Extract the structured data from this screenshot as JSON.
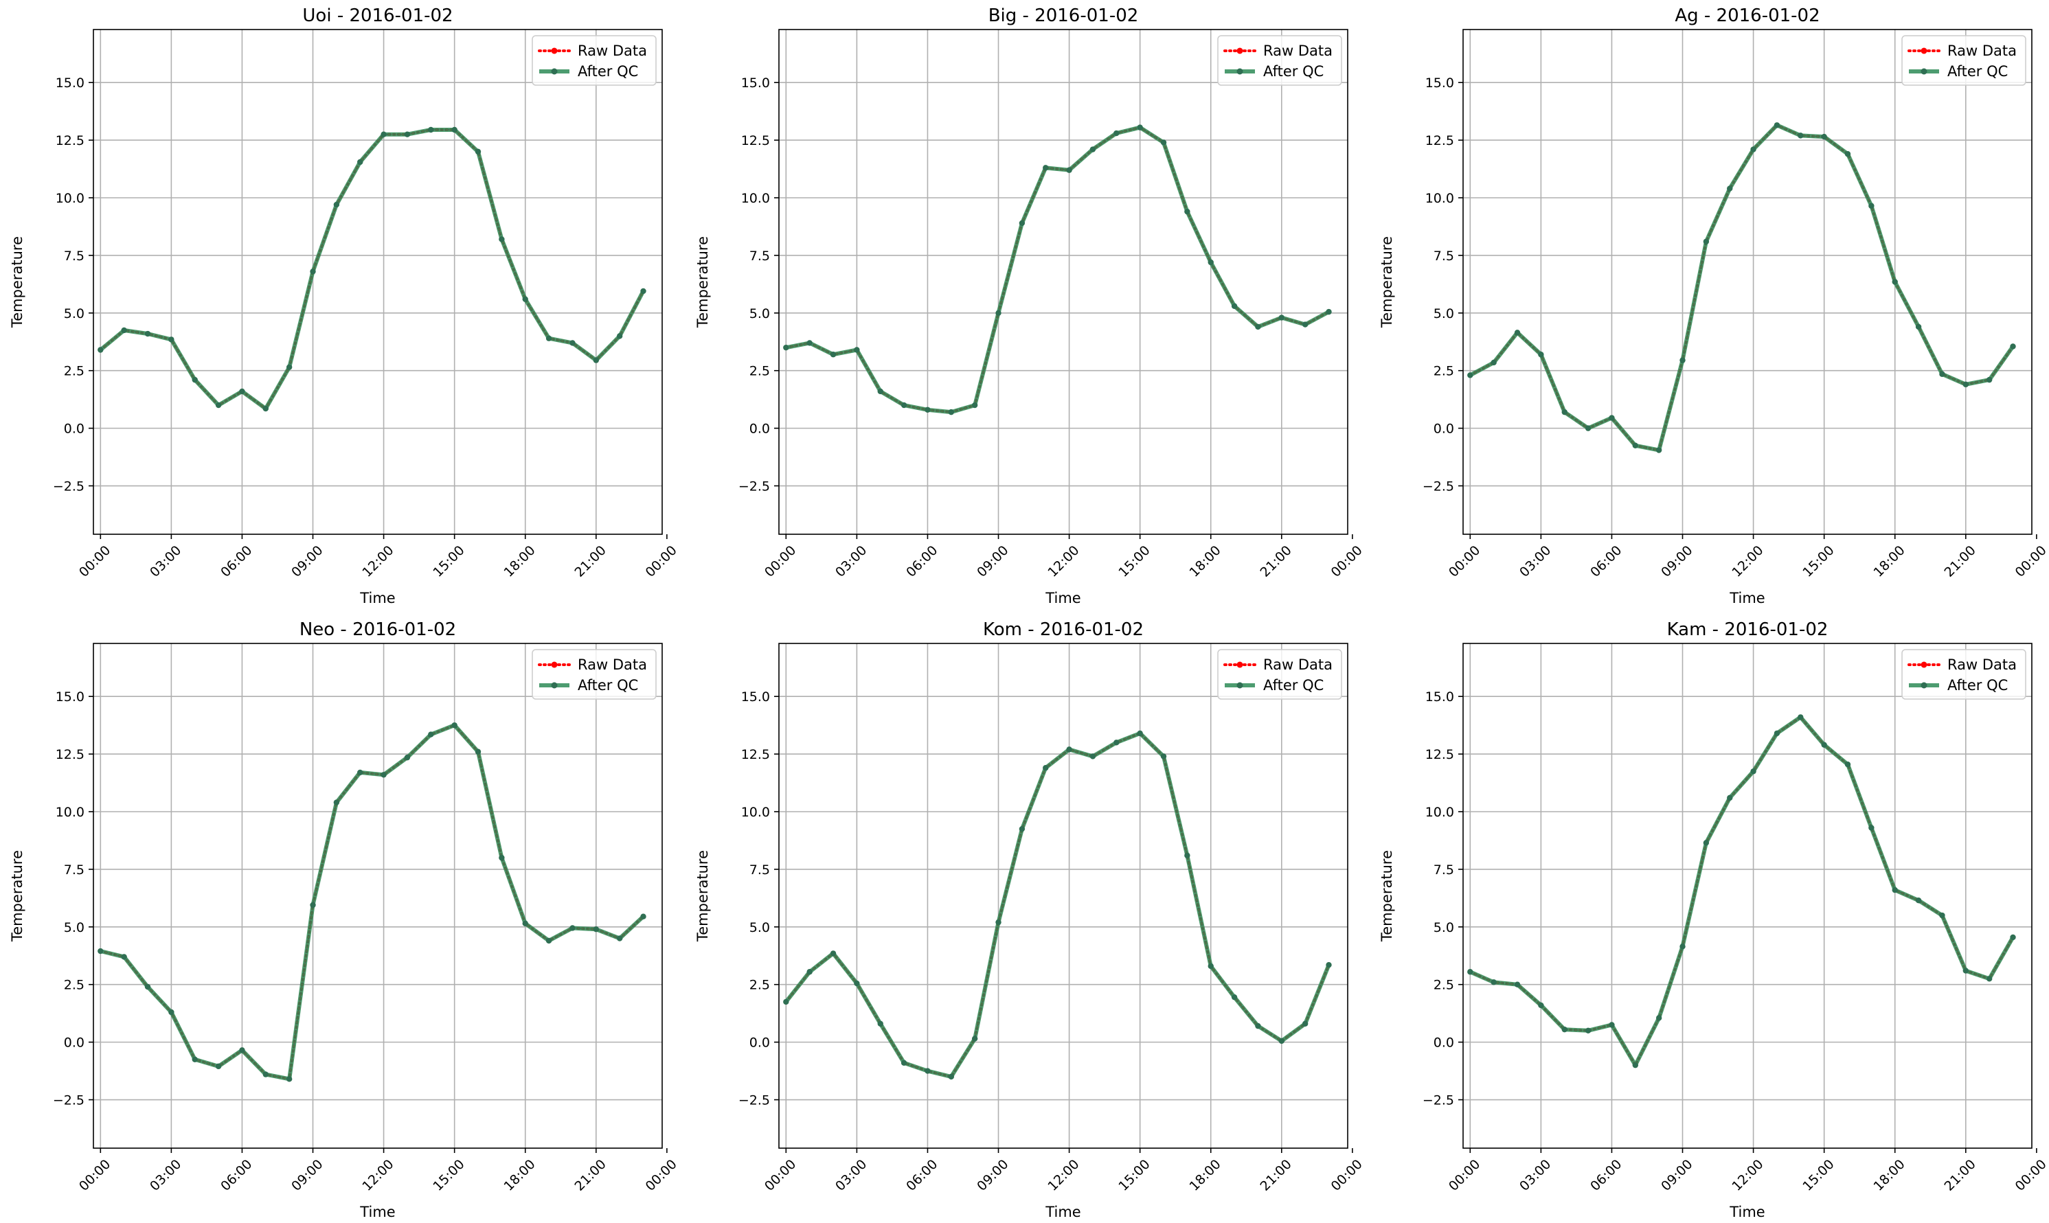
{
  "chart_data": [
    {
      "type": "line",
      "title": "Uoi - 2016-01-02",
      "xlabel": "Time",
      "ylabel": "Temperature",
      "ylim": [
        -4.6,
        17.3
      ],
      "xlim": [
        -0.3,
        23.8
      ],
      "yticks": [
        "−2.5",
        "0.0",
        "2.5",
        "5.0",
        "7.5",
        "10.0",
        "12.5",
        "15.0"
      ],
      "ytick_values": [
        -2.5,
        0,
        2.5,
        5,
        7.5,
        10,
        12.5,
        15
      ],
      "xticks": [
        "00:00",
        "03:00",
        "06:00",
        "09:00",
        "12:00",
        "15:00",
        "18:00",
        "21:00",
        "00:00"
      ],
      "xtick_values": [
        0,
        3,
        6,
        9,
        12,
        15,
        18,
        21,
        24
      ],
      "x": [
        0,
        1,
        2,
        3,
        4,
        5,
        6,
        7,
        8,
        9,
        10,
        11,
        12,
        13,
        14,
        15,
        16,
        17,
        18,
        19,
        20,
        21,
        22,
        23
      ],
      "series": [
        {
          "name": "Raw Data",
          "color": "#ff0000",
          "style": "dotted",
          "values": [
            3.4,
            4.25,
            4.1,
            3.85,
            2.1,
            1.0,
            1.6,
            0.85,
            2.65,
            6.8,
            9.7,
            11.55,
            12.75,
            12.75,
            12.95,
            12.95,
            12.0,
            8.2,
            5.6,
            3.9,
            3.7,
            2.95,
            4.0,
            5.95
          ]
        },
        {
          "name": "After QC",
          "color": "#2e8b57",
          "style": "solid",
          "values": [
            3.4,
            4.25,
            4.1,
            3.85,
            2.1,
            1.0,
            1.6,
            0.85,
            2.65,
            6.8,
            9.7,
            11.55,
            12.75,
            12.75,
            12.95,
            12.95,
            12.0,
            8.2,
            5.6,
            3.9,
            3.7,
            2.95,
            4.0,
            5.95
          ]
        }
      ],
      "legend": "top-right",
      "grid": true
    },
    {
      "type": "line",
      "title": "Big - 2016-01-02",
      "xlabel": "Time",
      "ylabel": "Temperature",
      "ylim": [
        -4.6,
        17.3
      ],
      "xlim": [
        -0.3,
        23.8
      ],
      "yticks": [
        "−2.5",
        "0.0",
        "2.5",
        "5.0",
        "7.5",
        "10.0",
        "12.5",
        "15.0"
      ],
      "ytick_values": [
        -2.5,
        0,
        2.5,
        5,
        7.5,
        10,
        12.5,
        15
      ],
      "xticks": [
        "00:00",
        "03:00",
        "06:00",
        "09:00",
        "12:00",
        "15:00",
        "18:00",
        "21:00",
        "00:00"
      ],
      "xtick_values": [
        0,
        3,
        6,
        9,
        12,
        15,
        18,
        21,
        24
      ],
      "x": [
        0,
        1,
        2,
        3,
        4,
        5,
        6,
        7,
        8,
        9,
        10,
        11,
        12,
        13,
        14,
        15,
        16,
        17,
        18,
        19,
        20,
        21,
        22,
        23
      ],
      "series": [
        {
          "name": "Raw Data",
          "color": "#ff0000",
          "style": "dotted",
          "values": [
            3.5,
            3.7,
            3.2,
            3.4,
            1.6,
            1.0,
            0.8,
            0.7,
            1.0,
            5.0,
            8.9,
            11.3,
            11.2,
            12.1,
            12.8,
            13.05,
            12.4,
            9.4,
            7.2,
            5.3,
            4.4,
            4.8,
            4.5,
            5.05
          ]
        },
        {
          "name": "After QC",
          "color": "#2e8b57",
          "style": "solid",
          "values": [
            3.5,
            3.7,
            3.2,
            3.4,
            1.6,
            1.0,
            0.8,
            0.7,
            1.0,
            5.0,
            8.9,
            11.3,
            11.2,
            12.1,
            12.8,
            13.05,
            12.4,
            9.4,
            7.2,
            5.3,
            4.4,
            4.8,
            4.5,
            5.05
          ]
        }
      ],
      "legend": "top-right",
      "grid": true
    },
    {
      "type": "line",
      "title": "Ag - 2016-01-02",
      "xlabel": "Time",
      "ylabel": "Temperature",
      "ylim": [
        -4.6,
        17.3
      ],
      "xlim": [
        -0.3,
        23.8
      ],
      "yticks": [
        "−2.5",
        "0.0",
        "2.5",
        "5.0",
        "7.5",
        "10.0",
        "12.5",
        "15.0"
      ],
      "ytick_values": [
        -2.5,
        0,
        2.5,
        5,
        7.5,
        10,
        12.5,
        15
      ],
      "xticks": [
        "00:00",
        "03:00",
        "06:00",
        "09:00",
        "12:00",
        "15:00",
        "18:00",
        "21:00",
        "00:00"
      ],
      "xtick_values": [
        0,
        3,
        6,
        9,
        12,
        15,
        18,
        21,
        24
      ],
      "x": [
        0,
        1,
        2,
        3,
        4,
        5,
        6,
        7,
        8,
        9,
        10,
        11,
        12,
        13,
        14,
        15,
        16,
        17,
        18,
        19,
        20,
        21,
        22,
        23
      ],
      "series": [
        {
          "name": "Raw Data",
          "color": "#ff0000",
          "style": "dotted",
          "values": [
            2.3,
            2.85,
            4.15,
            3.2,
            0.7,
            0.0,
            0.45,
            -0.75,
            -0.95,
            2.95,
            8.1,
            10.4,
            12.1,
            13.15,
            12.7,
            12.65,
            11.9,
            9.65,
            6.35,
            4.4,
            2.35,
            1.9,
            2.1,
            3.55
          ]
        },
        {
          "name": "After QC",
          "color": "#2e8b57",
          "style": "solid",
          "values": [
            2.3,
            2.85,
            4.15,
            3.2,
            0.7,
            0.0,
            0.45,
            -0.75,
            -0.95,
            2.95,
            8.1,
            10.4,
            12.1,
            13.15,
            12.7,
            12.65,
            11.9,
            9.65,
            6.35,
            4.4,
            2.35,
            1.9,
            2.1,
            3.55
          ]
        }
      ],
      "legend": "top-right",
      "grid": true
    },
    {
      "type": "line",
      "title": "Neo - 2016-01-02",
      "xlabel": "Time",
      "ylabel": "Temperature",
      "ylim": [
        -4.6,
        17.3
      ],
      "xlim": [
        -0.3,
        23.8
      ],
      "yticks": [
        "−2.5",
        "0.0",
        "2.5",
        "5.0",
        "7.5",
        "10.0",
        "12.5",
        "15.0"
      ],
      "ytick_values": [
        -2.5,
        0,
        2.5,
        5,
        7.5,
        10,
        12.5,
        15
      ],
      "xticks": [
        "00:00",
        "03:00",
        "06:00",
        "09:00",
        "12:00",
        "15:00",
        "18:00",
        "21:00",
        "00:00"
      ],
      "xtick_values": [
        0,
        3,
        6,
        9,
        12,
        15,
        18,
        21,
        24
      ],
      "x": [
        0,
        1,
        2,
        3,
        4,
        5,
        6,
        7,
        8,
        9,
        10,
        11,
        12,
        13,
        14,
        15,
        16,
        17,
        18,
        19,
        20,
        21,
        22,
        23
      ],
      "series": [
        {
          "name": "Raw Data",
          "color": "#ff0000",
          "style": "dotted",
          "values": [
            3.95,
            3.7,
            2.4,
            1.3,
            -0.75,
            -1.05,
            -0.35,
            -1.4,
            -1.6,
            5.95,
            10.4,
            11.7,
            11.6,
            12.35,
            13.35,
            13.75,
            12.6,
            8.0,
            5.15,
            4.4,
            4.95,
            4.9,
            4.5,
            5.45
          ]
        },
        {
          "name": "After QC",
          "color": "#2e8b57",
          "style": "solid",
          "values": [
            3.95,
            3.7,
            2.4,
            1.3,
            -0.75,
            -1.05,
            -0.35,
            -1.4,
            -1.6,
            5.95,
            10.4,
            11.7,
            11.6,
            12.35,
            13.35,
            13.75,
            12.6,
            8.0,
            5.15,
            4.4,
            4.95,
            4.9,
            4.5,
            5.45
          ]
        }
      ],
      "legend": "top-right",
      "grid": true
    },
    {
      "type": "line",
      "title": "Kom - 2016-01-02",
      "xlabel": "Time",
      "ylabel": "Temperature",
      "ylim": [
        -4.6,
        17.3
      ],
      "xlim": [
        -0.3,
        23.8
      ],
      "yticks": [
        "−2.5",
        "0.0",
        "2.5",
        "5.0",
        "7.5",
        "10.0",
        "12.5",
        "15.0"
      ],
      "ytick_values": [
        -2.5,
        0,
        2.5,
        5,
        7.5,
        10,
        12.5,
        15
      ],
      "xticks": [
        "00:00",
        "03:00",
        "06:00",
        "09:00",
        "12:00",
        "15:00",
        "18:00",
        "21:00",
        "00:00"
      ],
      "xtick_values": [
        0,
        3,
        6,
        9,
        12,
        15,
        18,
        21,
        24
      ],
      "x": [
        0,
        1,
        2,
        3,
        4,
        5,
        6,
        7,
        8,
        9,
        10,
        11,
        12,
        13,
        14,
        15,
        16,
        17,
        18,
        19,
        20,
        21,
        22,
        23
      ],
      "series": [
        {
          "name": "Raw Data",
          "color": "#ff0000",
          "style": "dotted",
          "values": [
            1.75,
            3.05,
            3.85,
            2.55,
            0.8,
            -0.9,
            -1.25,
            -1.5,
            0.15,
            5.2,
            9.25,
            11.9,
            12.7,
            12.4,
            13.0,
            13.4,
            12.4,
            8.1,
            3.3,
            1.95,
            0.7,
            0.05,
            0.8,
            3.35
          ]
        },
        {
          "name": "After QC",
          "color": "#2e8b57",
          "style": "solid",
          "values": [
            1.75,
            3.05,
            3.85,
            2.55,
            0.8,
            -0.9,
            -1.25,
            -1.5,
            0.15,
            5.2,
            9.25,
            11.9,
            12.7,
            12.4,
            13.0,
            13.4,
            12.4,
            8.1,
            3.3,
            1.95,
            0.7,
            0.05,
            0.8,
            3.35
          ]
        }
      ],
      "legend": "top-right",
      "grid": true
    },
    {
      "type": "line",
      "title": "Kam - 2016-01-02",
      "xlabel": "Time",
      "ylabel": "Temperature",
      "ylim": [
        -4.6,
        17.3
      ],
      "xlim": [
        -0.3,
        23.8
      ],
      "yticks": [
        "−2.5",
        "0.0",
        "2.5",
        "5.0",
        "7.5",
        "10.0",
        "12.5",
        "15.0"
      ],
      "ytick_values": [
        -2.5,
        0,
        2.5,
        5,
        7.5,
        10,
        12.5,
        15
      ],
      "xticks": [
        "00:00",
        "03:00",
        "06:00",
        "09:00",
        "12:00",
        "15:00",
        "18:00",
        "21:00",
        "00:00"
      ],
      "xtick_values": [
        0,
        3,
        6,
        9,
        12,
        15,
        18,
        21,
        24
      ],
      "x": [
        0,
        1,
        2,
        3,
        4,
        5,
        6,
        7,
        8,
        9,
        10,
        11,
        12,
        13,
        14,
        15,
        16,
        17,
        18,
        19,
        20,
        21,
        22,
        23
      ],
      "series": [
        {
          "name": "Raw Data",
          "color": "#ff0000",
          "style": "dotted",
          "values": [
            3.05,
            2.6,
            2.5,
            1.6,
            0.55,
            0.5,
            0.75,
            -1.0,
            1.05,
            4.15,
            8.65,
            10.6,
            11.75,
            13.4,
            14.1,
            12.9,
            12.05,
            9.3,
            6.6,
            6.15,
            5.5,
            3.1,
            2.75,
            4.55
          ]
        },
        {
          "name": "After QC",
          "color": "#2e8b57",
          "style": "solid",
          "values": [
            3.05,
            2.6,
            2.5,
            1.6,
            0.55,
            0.5,
            0.75,
            -1.0,
            1.05,
            4.15,
            8.65,
            10.6,
            11.75,
            13.4,
            14.1,
            12.9,
            12.05,
            9.3,
            6.6,
            6.15,
            5.5,
            3.1,
            2.75,
            4.55
          ]
        }
      ],
      "legend": "top-right",
      "grid": true
    }
  ]
}
